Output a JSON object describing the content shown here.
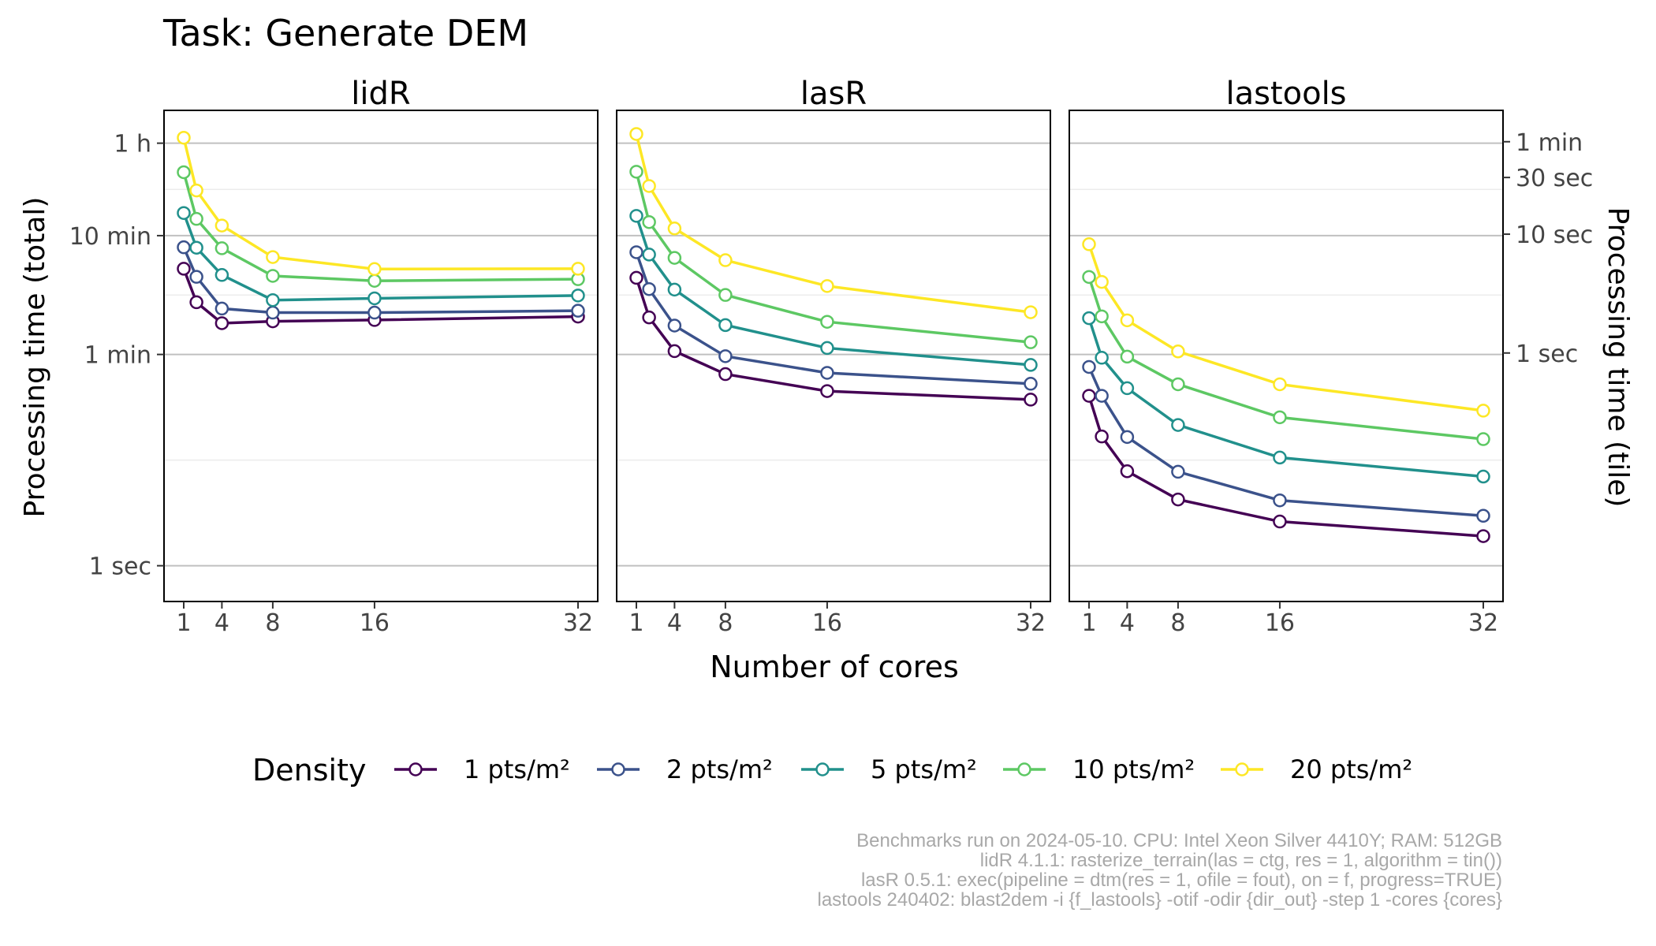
{
  "chart_data": {
    "type": "line",
    "title": "Task: Generate DEM",
    "xlabel": "Number of cores",
    "ylabel": "Processing time (total)",
    "ylabel_right": "Processing time (tile)",
    "scale": "log10",
    "x": [
      1,
      2,
      4,
      8,
      16,
      32
    ],
    "x_ticks": [
      1,
      4,
      8,
      16,
      32
    ],
    "y_ticks_left": [
      {
        "label": "1 h",
        "seconds": 3600
      },
      {
        "label": "10 min",
        "seconds": 600
      },
      {
        "label": "1 min",
        "seconds": 60
      },
      {
        "label": "1 sec",
        "seconds": 1
      }
    ],
    "y_range_seconds": [
      0.5,
      6800
    ],
    "y_ticks_right": [
      {
        "label": "1 min",
        "seconds_per_tile": 60
      },
      {
        "label": "30 sec",
        "seconds_per_tile": 30
      },
      {
        "label": "10 sec",
        "seconds_per_tile": 10
      },
      {
        "label": "1 sec",
        "seconds_per_tile": 1
      }
    ],
    "right_axis_factor_seconds": 0.0162,
    "grid": true,
    "legend": {
      "title": "Density",
      "position": "bottom"
    },
    "facets": [
      {
        "name": "lidR",
        "series": [
          {
            "name": "1 pts/m²",
            "color": "#440154",
            "values": [
              316,
              165,
              110,
              114,
              117,
              125
            ]
          },
          {
            "name": "2 pts/m²",
            "color": "#3B528B",
            "values": [
              479,
              270,
              146,
              135,
              135,
              140
            ]
          },
          {
            "name": "5 pts/m²",
            "color": "#21908C",
            "values": [
              930,
              475,
              280,
              172,
              178,
              188
            ]
          },
          {
            "name": "10 pts/m²",
            "color": "#5DC863",
            "values": [
              2050,
              830,
              470,
              275,
              250,
              258
            ]
          },
          {
            "name": "20 pts/m²",
            "color": "#FDE725",
            "values": [
              4000,
              1440,
              730,
              396,
              314,
              316
            ]
          }
        ]
      },
      {
        "name": "lasR",
        "series": [
          {
            "name": "1 pts/m²",
            "color": "#440154",
            "values": [
              265,
              123,
              64,
              41,
              29.5,
              25
            ]
          },
          {
            "name": "2 pts/m²",
            "color": "#3B528B",
            "values": [
              435,
              213,
              105,
              58,
              42,
              34
            ]
          },
          {
            "name": "5 pts/m²",
            "color": "#21908C",
            "values": [
              880,
              416,
              211,
              106,
              68,
              49
            ]
          },
          {
            "name": "10 pts/m²",
            "color": "#5DC863",
            "values": [
              2070,
              780,
              390,
              190,
              113,
              76
            ]
          },
          {
            "name": "20 pts/m²",
            "color": "#FDE725",
            "values": [
              4300,
              1570,
              690,
              373,
              226,
              136
            ]
          }
        ]
      },
      {
        "name": "lastools",
        "series": [
          {
            "name": "1 pts/m²",
            "color": "#440154",
            "values": [
              0.0044,
              0.002,
              0.00102,
              0.00059,
              0.000385,
              0.00029
            ]
          },
          {
            "name": "2 pts/m²",
            "color": "#3B528B",
            "values": [
              0.0077,
              0.0044,
              0.00198,
              0.00101,
              0.00058,
              0.00043
            ]
          },
          {
            "name": "5 pts/m²",
            "color": "#21908C",
            "values": [
              0.0198,
              0.0092,
              0.0051,
              0.0025,
              0.00133,
              0.00092
            ]
          },
          {
            "name": "10 pts/m²",
            "color": "#5DC863",
            "values": [
              0.044,
              0.0205,
              0.0094,
              0.0055,
              0.0029,
              0.0019
            ]
          },
          {
            "name": "20 pts/m²",
            "color": "#FDE725",
            "values": [
              0.083,
              0.04,
              0.019,
              0.0104,
              0.0055,
              0.0033
            ]
          }
        ]
      }
    ]
  },
  "caption": [
    "Benchmarks run on 2024-05-10. CPU: Intel Xeon Silver 4410Y; RAM: 512GB",
    "lidR 4.1.1: rasterize_terrain(las = ctg, res = 1, algorithm = tin())",
    "lasR 0.5.1: exec(pipeline = dtm(res = 1, ofile = fout), on = f, progress=TRUE)",
    "lastools 240402: blast2dem -i {f_lastools} -otif -odir {dir_out} -step 1 -cores {cores}"
  ]
}
